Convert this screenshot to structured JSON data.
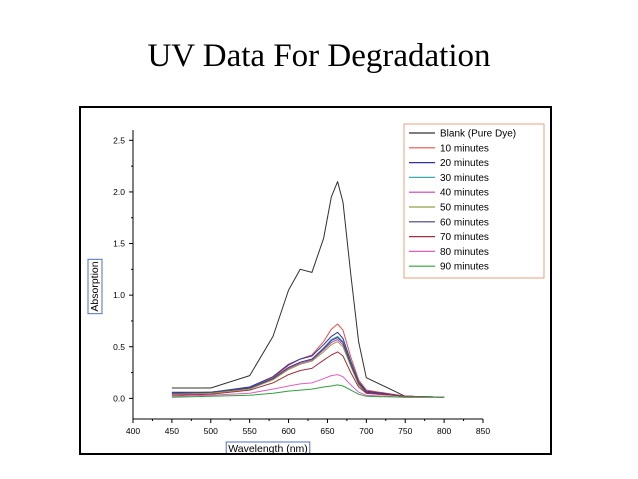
{
  "slide": {
    "title": "UV Data For Degradation"
  },
  "chart_data": {
    "type": "line",
    "title": "",
    "xlabel": "Wavelength (nm)",
    "ylabel": "Absorption",
    "xlim": [
      400,
      850
    ],
    "ylim": [
      -0.2,
      2.6
    ],
    "xticks": [
      400,
      450,
      500,
      550,
      600,
      650,
      700,
      750,
      800,
      850
    ],
    "yticks": [
      0.0,
      0.5,
      1.0,
      1.5,
      2.0,
      2.5
    ],
    "ytick_labels": [
      "0.0",
      "0.5",
      "1.0",
      "1.5",
      "2.0",
      "2.5"
    ],
    "grid": false,
    "legend_position": "top-right",
    "x": [
      450,
      500,
      550,
      580,
      600,
      615,
      630,
      645,
      655,
      663,
      670,
      680,
      690,
      700,
      750,
      800
    ],
    "series": [
      {
        "name": "Blank (Pure Dye)",
        "color": "#303030",
        "values": [
          0.1,
          0.1,
          0.22,
          0.6,
          1.05,
          1.25,
          1.22,
          1.55,
          1.95,
          2.1,
          1.9,
          1.2,
          0.55,
          0.2,
          0.02,
          0.01
        ]
      },
      {
        "name": "10 minutes",
        "color": "#e8504a",
        "values": [
          0.05,
          0.06,
          0.1,
          0.2,
          0.32,
          0.38,
          0.42,
          0.55,
          0.67,
          0.72,
          0.66,
          0.4,
          0.18,
          0.08,
          0.02,
          0.01
        ]
      },
      {
        "name": "20 minutes",
        "color": "#3030a0",
        "values": [
          0.06,
          0.06,
          0.11,
          0.21,
          0.33,
          0.38,
          0.41,
          0.52,
          0.6,
          0.64,
          0.58,
          0.36,
          0.16,
          0.07,
          0.02,
          0.01
        ]
      },
      {
        "name": "30 minutes",
        "color": "#40a8b0",
        "values": [
          0.05,
          0.06,
          0.1,
          0.19,
          0.3,
          0.35,
          0.38,
          0.49,
          0.57,
          0.6,
          0.55,
          0.34,
          0.15,
          0.06,
          0.02,
          0.01
        ]
      },
      {
        "name": "40 minutes",
        "color": "#c040c0",
        "values": [
          0.04,
          0.05,
          0.1,
          0.19,
          0.29,
          0.34,
          0.37,
          0.47,
          0.54,
          0.57,
          0.52,
          0.32,
          0.14,
          0.06,
          0.02,
          0.01
        ]
      },
      {
        "name": "50 minutes",
        "color": "#90a040",
        "values": [
          0.04,
          0.05,
          0.09,
          0.18,
          0.28,
          0.33,
          0.36,
          0.45,
          0.52,
          0.55,
          0.5,
          0.31,
          0.13,
          0.05,
          0.02,
          0.01
        ]
      },
      {
        "name": "60 minutes",
        "color": "#404080",
        "values": [
          0.05,
          0.06,
          0.1,
          0.19,
          0.3,
          0.35,
          0.38,
          0.48,
          0.56,
          0.59,
          0.54,
          0.33,
          0.15,
          0.06,
          0.02,
          0.01
        ]
      },
      {
        "name": "70 minutes",
        "color": "#a03040",
        "values": [
          0.03,
          0.04,
          0.08,
          0.15,
          0.23,
          0.27,
          0.29,
          0.37,
          0.42,
          0.45,
          0.41,
          0.25,
          0.11,
          0.05,
          0.02,
          0.01
        ]
      },
      {
        "name": "80 minutes",
        "color": "#e060c0",
        "values": [
          0.02,
          0.03,
          0.05,
          0.09,
          0.12,
          0.14,
          0.15,
          0.19,
          0.22,
          0.23,
          0.21,
          0.13,
          0.06,
          0.03,
          0.01,
          0.01
        ]
      },
      {
        "name": "90 minutes",
        "color": "#30a040",
        "values": [
          0.01,
          0.02,
          0.03,
          0.05,
          0.07,
          0.08,
          0.09,
          0.11,
          0.12,
          0.13,
          0.12,
          0.08,
          0.04,
          0.02,
          0.01,
          0.01
        ]
      }
    ]
  }
}
